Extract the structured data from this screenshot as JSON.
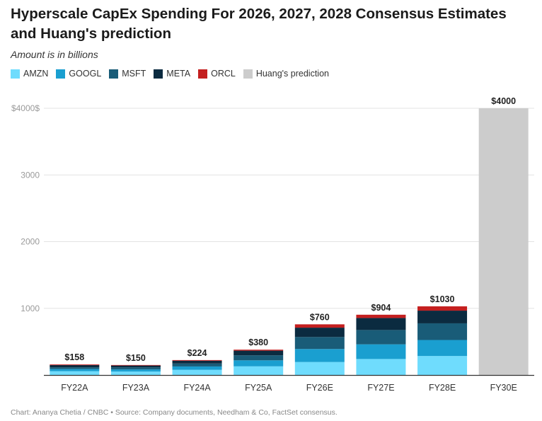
{
  "title": "Hyperscale CapEx Spending For 2026, 2027, 2028 Consensus Estimates and Huang's prediction",
  "subtitle": "Amount is in billions",
  "footer": "Chart: Ananya Chetia / CNBC • Source: Company documents, Needham & Co, FactSet consensus.",
  "chart_data": {
    "type": "bar",
    "stacked": true,
    "categories": [
      "FY22A",
      "FY23A",
      "FY24A",
      "FY25A",
      "FY26E",
      "FY27E",
      "FY28E",
      "FY30E"
    ],
    "series": [
      {
        "name": "AMZN",
        "color": "#6fdcfd",
        "values": [
          57,
          52,
          78,
          130,
          195,
          240,
          285,
          0
        ]
      },
      {
        "name": "GOOGL",
        "color": "#1a9fd0",
        "values": [
          32,
          31,
          50,
          90,
          195,
          220,
          240,
          0
        ]
      },
      {
        "name": "MSFT",
        "color": "#195c78",
        "values": [
          26,
          32,
          44,
          75,
          180,
          215,
          250,
          0
        ]
      },
      {
        "name": "META",
        "color": "#0b2b40",
        "values": [
          33,
          27,
          42,
          70,
          140,
          180,
          190,
          0
        ]
      },
      {
        "name": "ORCL",
        "color": "#c41f1f",
        "values": [
          10,
          8,
          10,
          15,
          50,
          49,
          65,
          0
        ]
      },
      {
        "name": "Huang's prediction",
        "color": "#cccccc",
        "values": [
          0,
          0,
          0,
          0,
          0,
          0,
          0,
          4000
        ]
      }
    ],
    "totals": [
      158,
      150,
      224,
      380,
      760,
      904,
      1030,
      4000
    ],
    "total_labels": [
      "$158",
      "$150",
      "$224",
      "$380",
      "$760",
      "$904",
      "$1030",
      "$4000"
    ],
    "yticks": [
      0,
      1000,
      2000,
      3000,
      4000
    ],
    "ytick_labels": [
      "",
      "1000",
      "2000",
      "3000",
      "$4000$"
    ],
    "ylim": [
      0,
      4000
    ],
    "xlabel": "",
    "ylabel": "",
    "grid": true,
    "legend_position": "top-left"
  }
}
